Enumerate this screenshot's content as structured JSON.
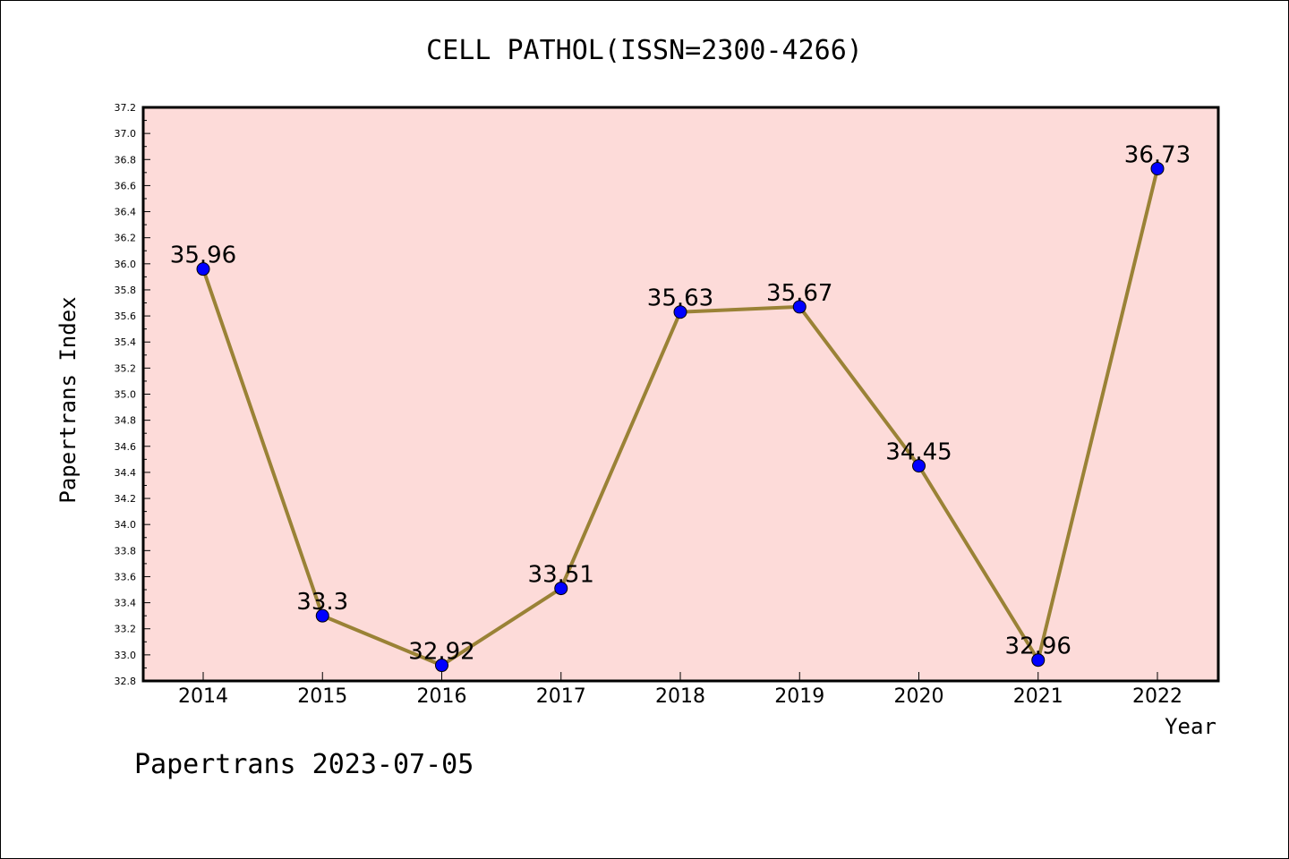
{
  "chart_data": {
    "type": "line",
    "title": "CELL PATHOL(ISSN=2300-4266)",
    "xlabel": "Year",
    "ylabel": "Papertrans Index",
    "categories": [
      "2014",
      "2015",
      "2016",
      "2017",
      "2018",
      "2019",
      "2020",
      "2021",
      "2022"
    ],
    "series": [
      {
        "values": [
          35.96,
          33.3,
          32.92,
          33.51,
          35.63,
          35.67,
          34.45,
          32.96,
          36.73
        ],
        "labels": [
          "35.96",
          "33.3",
          "32.92",
          "33.51",
          "35.63",
          "35.67",
          "34.45",
          "32.96",
          "36.73"
        ]
      }
    ],
    "ylim": [
      32.8,
      37.2
    ],
    "yticks": [
      "32.8",
      "33.0",
      "33.2",
      "33.4",
      "33.6",
      "33.8",
      "34.0",
      "34.2",
      "34.4",
      "34.6",
      "34.8",
      "35.0",
      "35.2",
      "35.4",
      "35.6",
      "35.8",
      "36.0",
      "36.2",
      "36.4",
      "36.6",
      "36.8",
      "37.0",
      "37.2"
    ],
    "grid": false,
    "colors": {
      "plot_background": "#fddbd9",
      "line": "#9a8236",
      "marker": "#0000ff"
    }
  },
  "footer": "Papertrans 2023-07-05"
}
